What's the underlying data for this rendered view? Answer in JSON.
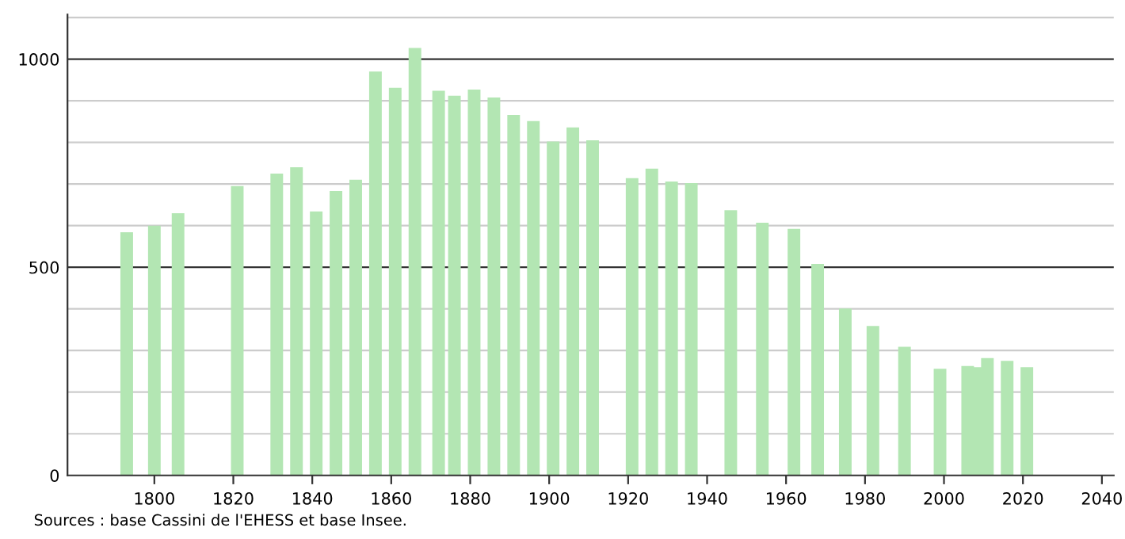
{
  "chart_data": {
    "type": "bar",
    "color": "#b3e6b3",
    "x": [
      1793,
      1800,
      1806,
      1821,
      1831,
      1836,
      1841,
      1846,
      1851,
      1856,
      1861,
      1866,
      1872,
      1876,
      1881,
      1886,
      1891,
      1896,
      1901,
      1906,
      1911,
      1921,
      1926,
      1931,
      1936,
      1946,
      1954,
      1962,
      1968,
      1975,
      1982,
      1990,
      1999,
      2006,
      2008,
      2011,
      2016,
      2021
    ],
    "values": [
      584,
      600,
      630,
      695,
      725,
      740,
      634,
      683,
      710,
      970,
      931,
      1027,
      924,
      912,
      927,
      908,
      866,
      851,
      802,
      836,
      805,
      714,
      737,
      706,
      702,
      637,
      607,
      592,
      508,
      401,
      359,
      309,
      256,
      263,
      260,
      282,
      275,
      260
    ],
    "xlim": [
      1778,
      2043
    ],
    "xticks": [
      1800,
      1820,
      1840,
      1860,
      1880,
      1900,
      1920,
      1940,
      1960,
      1980,
      2000,
      2020,
      2040
    ],
    "ylim": [
      0,
      1107
    ],
    "yticks": [
      0,
      {
        "value": 100,
        "label": null
      },
      {
        "value": 200,
        "label": null
      },
      {
        "value": 300,
        "label": null
      },
      {
        "value": 400,
        "label": null
      },
      500,
      {
        "value": 600,
        "label": null
      },
      {
        "value": 700,
        "label": null
      },
      {
        "value": 800,
        "label": null
      },
      {
        "value": 900,
        "label": null
      },
      1000,
      {
        "value": 1100,
        "label": null
      }
    ],
    "grid": "y",
    "annotations": [
      "Sources : base Cassini de l'EHESS et base Insee."
    ]
  }
}
